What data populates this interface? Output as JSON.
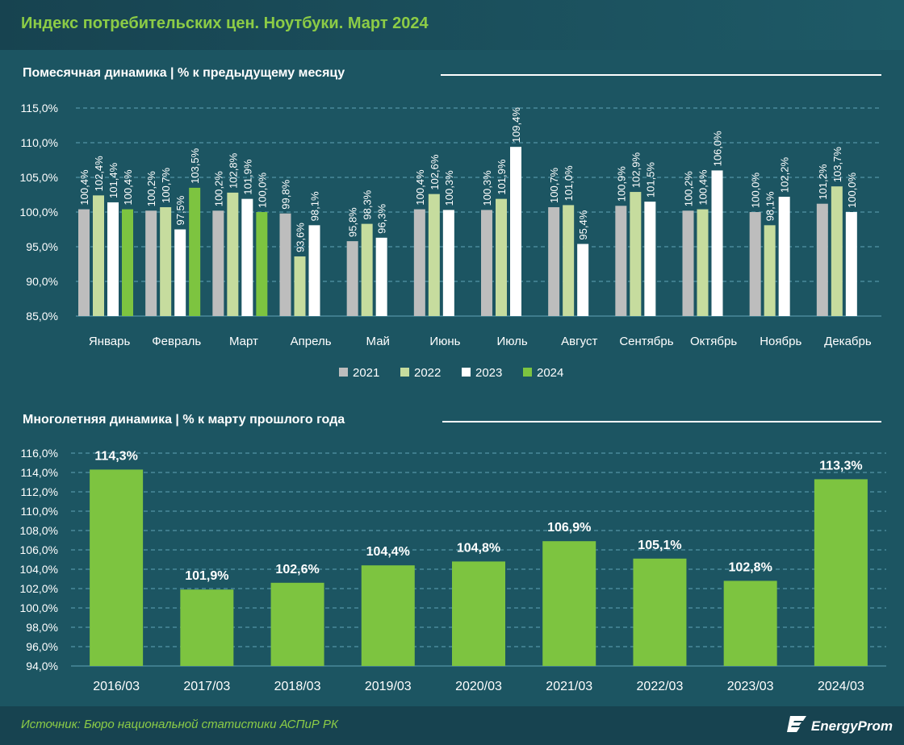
{
  "page": {
    "title": "Индекс потребительских цен. Ноутбуки. Март 2024",
    "source": "Источник: Бюро национальной статистики АСПиР РК",
    "logo_text": "EnergyProm"
  },
  "colors": {
    "c2021": "#bdbdbd",
    "c2022": "#c6dc9e",
    "c2023": "#ffffff",
    "c2024": "#7dc440",
    "bg": "#1c5562",
    "accent": "#8ccc46"
  },
  "chart_data": [
    {
      "type": "bar",
      "title": "Помесячная динамика | % к предыдущему месяцу",
      "categories": [
        "Январь",
        "Февраль",
        "Март",
        "Апрель",
        "Май",
        "Июнь",
        "Июль",
        "Август",
        "Сентябрь",
        "Октябрь",
        "Ноябрь",
        "Декабрь"
      ],
      "series": [
        {
          "name": "2021",
          "values": [
            100.4,
            100.2,
            100.2,
            99.8,
            95.8,
            100.4,
            100.3,
            100.7,
            100.9,
            100.2,
            100.0,
            101.2
          ]
        },
        {
          "name": "2022",
          "values": [
            102.4,
            100.7,
            102.8,
            93.6,
            98.3,
            102.6,
            101.9,
            101.0,
            102.9,
            100.4,
            98.1,
            103.7
          ]
        },
        {
          "name": "2023",
          "values": [
            101.4,
            97.5,
            101.9,
            98.1,
            96.3,
            100.3,
            109.4,
            95.4,
            101.5,
            106.0,
            102.2,
            100.0
          ]
        },
        {
          "name": "2024",
          "values": [
            100.4,
            103.5,
            100.0,
            null,
            null,
            null,
            null,
            null,
            null,
            null,
            null,
            null
          ]
        }
      ],
      "ylim": [
        85,
        115
      ],
      "yticks": [
        "85,0%",
        "90,0%",
        "95,0%",
        "100,0%",
        "105,0%",
        "110,0%",
        "115,0%"
      ],
      "legend": [
        "2021",
        "2022",
        "2023",
        "2024"
      ],
      "legend_position": "bottom-center"
    },
    {
      "type": "bar",
      "title": "Многолетняя динамика | % к марту прошлого года",
      "categories": [
        "2016/03",
        "2017/03",
        "2018/03",
        "2019/03",
        "2020/03",
        "2021/03",
        "2022/03",
        "2023/03",
        "2024/03"
      ],
      "values": [
        114.3,
        101.9,
        102.6,
        104.4,
        104.8,
        106.9,
        105.1,
        102.8,
        113.3
      ],
      "labels": [
        "114,3%",
        "101,9%",
        "102,6%",
        "104,4%",
        "104,8%",
        "106,9%",
        "105,1%",
        "102,8%",
        "113,3%"
      ],
      "ylim": [
        94,
        116
      ],
      "yticks": [
        "94,0%",
        "96,0%",
        "98,0%",
        "100,0%",
        "102,0%",
        "104,0%",
        "106,0%",
        "108,0%",
        "110,0%",
        "112,0%",
        "114,0%",
        "116,0%"
      ]
    }
  ]
}
